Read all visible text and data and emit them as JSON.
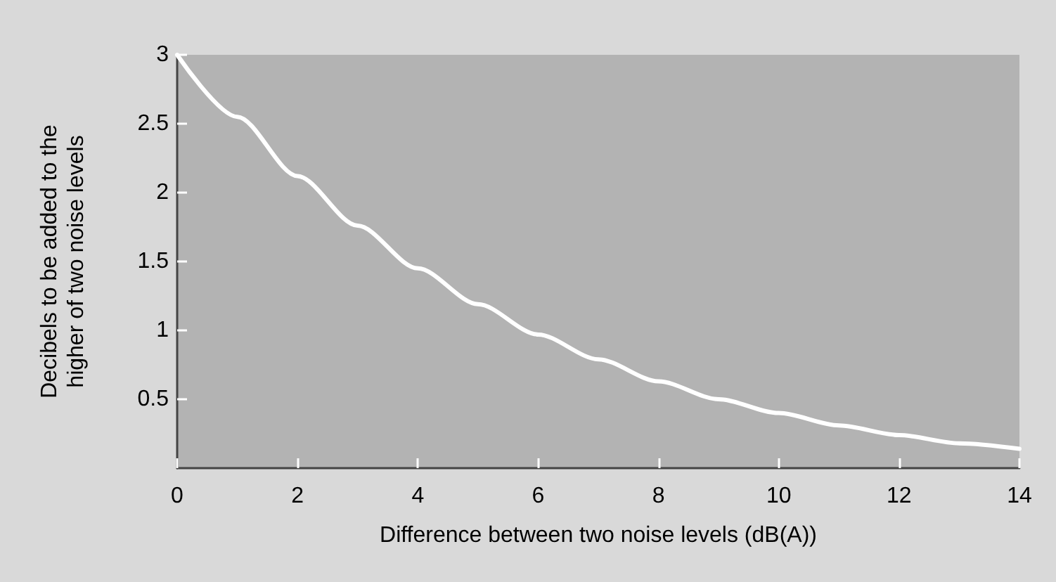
{
  "chart_data": {
    "type": "line",
    "xlabel": "Difference between two noise levels (dB(A))",
    "ylabel": "Decibels to be added to the higher of two noise levels",
    "x": [
      0,
      1,
      2,
      3,
      4,
      5,
      6,
      7,
      8,
      9,
      10,
      11,
      12,
      13,
      14
    ],
    "series": [
      {
        "color": "#ffffff",
        "values": [
          3.0,
          2.55,
          2.12,
          1.76,
          1.45,
          1.19,
          0.97,
          0.79,
          0.63,
          0.5,
          0.4,
          0.31,
          0.24,
          0.18,
          0.14
        ]
      }
    ],
    "xlim": [
      0,
      14
    ],
    "xticks": [
      0,
      2,
      4,
      6,
      8,
      10,
      12,
      14
    ],
    "ylim": [
      0,
      3
    ],
    "yticks": [
      0.5,
      1,
      1.5,
      2,
      2.5,
      3
    ],
    "grid": false,
    "marker": "none",
    "line_style": "solid"
  }
}
